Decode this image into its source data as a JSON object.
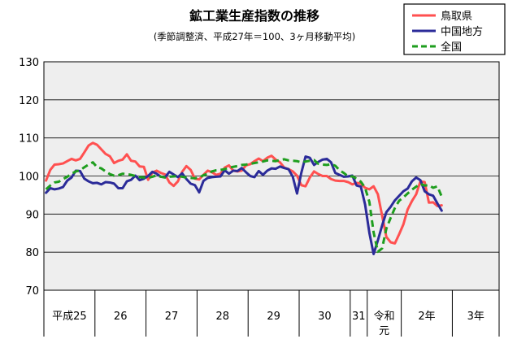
{
  "chart_data": {
    "type": "line",
    "title": "鉱工業生産指数の推移",
    "subtitle": "(季節調整済、平成27年＝100、3ヶ月移動平均)",
    "ylim": [
      70,
      130
    ],
    "yticks": [
      70,
      80,
      90,
      100,
      110,
      120,
      130
    ],
    "grid": true,
    "legend_position": "top-right",
    "x_period_labels": [
      "平成25",
      "26",
      "27",
      "28",
      "29",
      "30",
      "31",
      "令和元",
      "2年",
      "3年"
    ],
    "x_period_label_lines": [
      [
        "平成25"
      ],
      [
        "26"
      ],
      [
        "27"
      ],
      [
        "28"
      ],
      [
        "29"
      ],
      [
        "30"
      ],
      [
        "31"
      ],
      [
        "令和",
        "元"
      ],
      [
        "2年"
      ],
      [
        "3年"
      ]
    ],
    "x_period_months": [
      12,
      12,
      12,
      12,
      12,
      12,
      4,
      8,
      12,
      11
    ],
    "series": [
      {
        "name": "鳥取県",
        "color": "#ff5050",
        "style": "solid",
        "values": [
          98.8,
          101.6,
          103.0,
          103.1,
          103.3,
          103.9,
          104.5,
          104.1,
          104.5,
          106.2,
          108.0,
          108.7,
          108.2,
          107.0,
          105.8,
          105.2,
          103.4,
          104.0,
          104.3,
          105.7,
          104.0,
          103.8,
          102.5,
          102.4,
          99.0,
          100.9,
          101.4,
          100.8,
          100.4,
          98.3,
          97.4,
          98.6,
          101.1,
          102.6,
          101.6,
          99.3,
          99.1,
          100.3,
          101.4,
          101.0,
          100.3,
          100.6,
          102.2,
          102.8,
          101.4,
          101.2,
          101.4,
          102.8,
          103.1,
          103.9,
          104.6,
          103.9,
          104.8,
          105.3,
          104.3,
          103.6,
          102.2,
          101.8,
          101.2,
          100.1,
          97.6,
          97.3,
          99.6,
          101.2,
          100.5,
          100.0,
          100.0,
          99.2,
          98.8,
          98.7,
          98.7,
          98.4,
          97.8,
          98.2,
          98.0,
          96.9,
          96.5,
          97.3,
          95.2,
          89.6,
          84.0,
          82.6,
          82.3,
          84.7,
          87.3,
          91.2,
          93.4,
          95.2,
          98.6,
          98.4,
          93.0,
          93.1,
          92.1,
          92.3
        ]
      },
      {
        "name": "中国地方",
        "color": "#2b2b99",
        "style": "solid",
        "values": [
          95.6,
          96.8,
          96.5,
          96.7,
          97.1,
          98.8,
          99.6,
          101.4,
          101.3,
          99.3,
          98.6,
          98.1,
          98.2,
          97.8,
          98.4,
          98.3,
          98.0,
          96.8,
          96.8,
          98.6,
          99.0,
          100.1,
          98.9,
          99.3,
          100.0,
          101.1,
          100.6,
          99.8,
          99.7,
          101.1,
          100.4,
          99.7,
          100.7,
          99.2,
          98.0,
          97.6,
          95.7,
          98.7,
          99.5,
          99.7,
          99.8,
          99.9,
          101.5,
          100.6,
          101.4,
          101.3,
          102.1,
          101.0,
          100.0,
          99.7,
          101.3,
          100.3,
          101.4,
          102.0,
          101.9,
          102.5,
          102.1,
          101.8,
          99.8,
          95.4,
          100.8,
          105.1,
          104.8,
          102.9,
          103.7,
          104.3,
          104.5,
          103.6,
          100.8,
          100.3,
          99.8,
          99.9,
          100.1,
          97.5,
          97.2,
          92.5,
          85.1,
          79.5,
          83.1,
          87.0,
          90.5,
          91.9,
          93.6,
          94.8,
          96.0,
          96.7,
          98.6,
          99.6,
          98.9,
          96.0,
          95.2,
          94.8,
          92.8,
          90.9
        ]
      },
      {
        "name": "全国",
        "color": "#1e9e1e",
        "style": "dashed",
        "values": [
          96.5,
          97.5,
          98.3,
          98.5,
          99.2,
          99.8,
          100.6,
          101.2,
          101.5,
          102.3,
          103.0,
          103.6,
          102.3,
          102.0,
          101.2,
          100.5,
          100.1,
          100.2,
          100.6,
          100.5,
          100.3,
          100.0,
          99.7,
          99.6,
          99.5,
          99.8,
          100.2,
          99.8,
          99.6,
          99.8,
          99.9,
          100.0,
          99.8,
          99.6,
          99.5,
          99.4,
          99.6,
          100.2,
          100.6,
          101.2,
          101.5,
          101.6,
          101.8,
          102.2,
          102.4,
          102.6,
          102.9,
          103.0,
          103.2,
          103.4,
          103.6,
          103.8,
          104.1,
          104.0,
          103.9,
          104.2,
          104.4,
          104.1,
          104.0,
          103.9,
          103.6,
          103.8,
          104.0,
          104.2,
          103.2,
          103.0,
          102.9,
          103.1,
          102.7,
          101.5,
          100.8,
          99.9,
          99.9,
          99.3,
          98.5,
          96.9,
          93.2,
          85.2,
          80.1,
          81.0,
          86.2,
          89.0,
          91.6,
          93.5,
          94.4,
          95.4,
          96.4,
          97.2,
          97.9,
          97.5,
          97.6,
          96.9,
          97.3,
          94.6
        ]
      }
    ]
  }
}
